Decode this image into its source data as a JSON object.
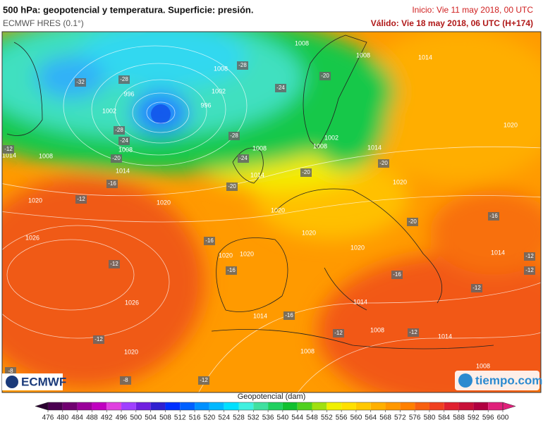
{
  "header": {
    "title": "500 hPa: geopotencial y temperatura. Superficie: presión.",
    "model": "ECMWF HRES (0.1°)",
    "init": "Inicio: Vie 11 may 2018, 00 UTC",
    "valid": "Válido: Vie 18 may 2018, 06 UTC (H+174)"
  },
  "map": {
    "pressure_labels": [
      "1008",
      "1008",
      "1014",
      "1008",
      "1002",
      "996",
      "996",
      "1002",
      "1008",
      "1008",
      "1014",
      "1014",
      "1008",
      "1002",
      "1008",
      "1014",
      "1020",
      "1014",
      "1020",
      "1020",
      "1020",
      "1020",
      "1020",
      "1026",
      "1020",
      "1020",
      "1020",
      "1014",
      "1026",
      "1014",
      "1014",
      "1008",
      "1014",
      "1020",
      "1008",
      "1008"
    ],
    "temperature_labels": [
      "-28",
      "-32",
      "-28",
      "-24",
      "-20",
      "-28",
      "-24",
      "-28",
      "-20",
      "-12",
      "-24",
      "-20",
      "-20",
      "-16",
      "-20",
      "-12",
      "-16",
      "-20",
      "-16",
      "-12",
      "-16",
      "-16",
      "-12",
      "-12",
      "-16",
      "-12",
      "-12",
      "-12",
      "-12",
      "-8",
      "-12",
      "-8"
    ]
  },
  "logos": {
    "left": "ECMWF",
    "right": "tiempo.com"
  },
  "colorbar": {
    "title": "Geopotencial (dam)",
    "levels": [
      476,
      480,
      484,
      488,
      492,
      496,
      500,
      504,
      508,
      512,
      516,
      520,
      524,
      528,
      532,
      536,
      540,
      544,
      548,
      552,
      556,
      560,
      564,
      568,
      572,
      576,
      580,
      584,
      588,
      592,
      596,
      600
    ],
    "colors": [
      "#2a0030",
      "#4b0050",
      "#700070",
      "#9a009a",
      "#c000c0",
      "#e040e0",
      "#a040ff",
      "#7020e0",
      "#3020d0",
      "#0030ff",
      "#0060ff",
      "#0090ff",
      "#00b8ff",
      "#00e0ff",
      "#40f0e0",
      "#40e0a0",
      "#20d060",
      "#10c030",
      "#50d020",
      "#a0e010",
      "#f0f000",
      "#ffe000",
      "#ffc800",
      "#ffb000",
      "#ff9800",
      "#ff8000",
      "#f86010",
      "#f04020",
      "#e02030",
      "#c81038",
      "#b00040",
      "#e0207a"
    ]
  }
}
